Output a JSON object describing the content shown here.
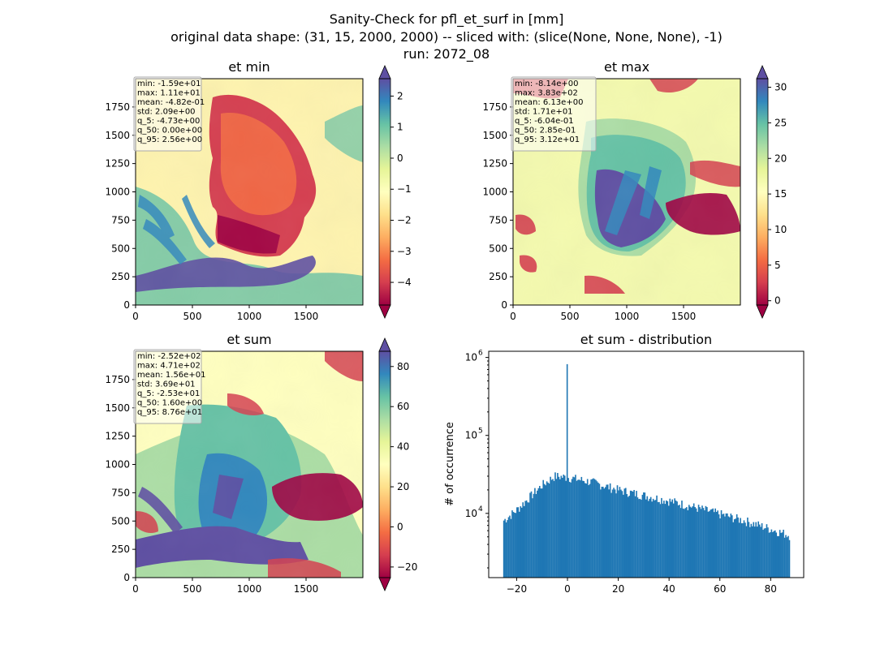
{
  "suptitle": [
    "Sanity-Check for pfl_et_surf in [mm]",
    "original data shape: (31, 15, 2000, 2000) -- sliced with: (slice(None, None, None), -1)",
    "run: 2072_08"
  ],
  "colors": {
    "spectral": [
      "#9e0142",
      "#d53e4f",
      "#f46d43",
      "#fdae61",
      "#fee08b",
      "#ffffbf",
      "#e6f598",
      "#abdda4",
      "#66c2a5",
      "#3288bd",
      "#5e4fa2"
    ],
    "hist_bar": "#1f77b4",
    "axis": "#000000"
  },
  "chart_data": [
    {
      "type": "heatmap",
      "title": "et min",
      "x_ticks": [
        "0",
        "500",
        "1000",
        "1500"
      ],
      "y_ticks": [
        "0",
        "250",
        "500",
        "750",
        "1000",
        "1250",
        "1500",
        "1750"
      ],
      "xlim": [
        0,
        2000
      ],
      "ylim": [
        0,
        2000
      ],
      "colorbar": {
        "ticks": [
          "2",
          "1",
          "0",
          "−1",
          "−2",
          "−3",
          "−4"
        ],
        "tick_values": [
          2,
          1,
          0,
          -1,
          -2,
          -3,
          -4
        ],
        "range": [
          -4.73,
          2.56
        ],
        "extend": "both"
      },
      "stats": [
        "min: -1.59e+01",
        "max: 1.11e+01",
        "mean: -4.82e-01",
        "std: 2.09e+00",
        "q_5: -4.73e+00",
        "q_50: 0.00e+00",
        "q_95: 2.56e+00"
      ]
    },
    {
      "type": "heatmap",
      "title": "et max",
      "x_ticks": [
        "0",
        "500",
        "1000",
        "1500"
      ],
      "y_ticks": [
        "0",
        "250",
        "500",
        "750",
        "1000",
        "1250",
        "1500",
        "1750"
      ],
      "xlim": [
        0,
        2000
      ],
      "ylim": [
        0,
        2000
      ],
      "colorbar": {
        "ticks": [
          "30",
          "25",
          "20",
          "15",
          "10",
          "5",
          "0"
        ],
        "tick_values": [
          30,
          25,
          20,
          15,
          10,
          5,
          0
        ],
        "range": [
          -0.604,
          31.2
        ],
        "extend": "both"
      },
      "stats": [
        "min: -8.14e+00",
        "max: 3.83e+02",
        "mean: 6.13e+00",
        "std: 1.71e+01",
        "q_5: -6.04e-01",
        "q_50: 2.85e-01",
        "q_95: 3.12e+01"
      ]
    },
    {
      "type": "heatmap",
      "title": "et sum",
      "x_ticks": [
        "0",
        "500",
        "1000",
        "1500"
      ],
      "y_ticks": [
        "0",
        "250",
        "500",
        "750",
        "1000",
        "1250",
        "1500",
        "1750"
      ],
      "xlim": [
        0,
        2000
      ],
      "ylim": [
        0,
        2000
      ],
      "colorbar": {
        "ticks": [
          "80",
          "60",
          "40",
          "20",
          "0",
          "−20"
        ],
        "tick_values": [
          80,
          60,
          40,
          20,
          0,
          -20
        ],
        "range": [
          -25.3,
          87.6
        ],
        "extend": "both"
      },
      "stats": [
        "min: -2.52e+02",
        "max: 4.71e+02",
        "mean: 1.56e+01",
        "std: 3.69e+01",
        "q_5: -2.53e+01",
        "q_50: 1.60e+00",
        "q_95: 8.76e+01"
      ]
    },
    {
      "type": "bar",
      "title": "et sum - distribution",
      "ylabel": "# of occurrence",
      "yscale": "log",
      "xlim": [
        -31,
        93
      ],
      "ylim": [
        1500,
        1200000
      ],
      "x_ticks": [
        "−20",
        "0",
        "20",
        "40",
        "60",
        "80"
      ],
      "x_tick_values": [
        -20,
        0,
        20,
        40,
        60,
        80
      ],
      "y_ticks": [
        "10",
        "10",
        "10"
      ],
      "y_tick_exponents": [
        "4",
        "5",
        "6"
      ],
      "y_tick_values": [
        10000,
        100000,
        1000000
      ],
      "bins": {
        "start": -25.3,
        "end": 87.6
      },
      "profile": [
        [
          -25.3,
          8000
        ],
        [
          -20,
          11000
        ],
        [
          -15,
          16000
        ],
        [
          -10,
          23000
        ],
        [
          -5,
          30000
        ],
        [
          0,
          29000
        ],
        [
          5,
          27000
        ],
        [
          10,
          25000
        ],
        [
          20,
          20000
        ],
        [
          30,
          17000
        ],
        [
          40,
          14500
        ],
        [
          50,
          12000
        ],
        [
          60,
          9800
        ],
        [
          70,
          8000
        ],
        [
          80,
          6300
        ],
        [
          87.6,
          5200
        ]
      ],
      "spike": {
        "x": 0,
        "value": 820000
      }
    }
  ]
}
